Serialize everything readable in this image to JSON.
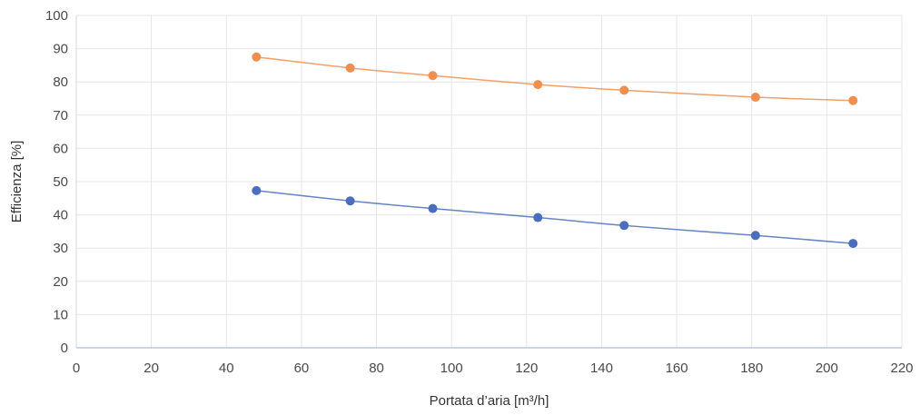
{
  "chart_data": {
    "type": "line",
    "xlabel": "Portata d’aria [m³/h]",
    "ylabel": "Efficienza [%]",
    "xlim": [
      0,
      220
    ],
    "ylim": [
      0,
      100
    ],
    "x_ticks": [
      "0",
      "20",
      "40",
      "60",
      "80",
      "100",
      "120",
      "140",
      "160",
      "180",
      "200",
      "220"
    ],
    "y_ticks": [
      "0",
      "10",
      "20",
      "30",
      "40",
      "50",
      "60",
      "70",
      "80",
      "90",
      "100"
    ],
    "grid": true,
    "legend": "none",
    "series": [
      {
        "color": "#ee8f50",
        "x": [
          48,
          73,
          95,
          123,
          146,
          181,
          207
        ],
        "y": [
          87.5,
          84.2,
          81.9,
          79.2,
          77.5,
          75.4,
          74.4
        ]
      },
      {
        "color": "#4a6dbd",
        "x": [
          48,
          73,
          95,
          123,
          146,
          181,
          207
        ],
        "y": [
          47.3,
          44.2,
          41.9,
          39.2,
          36.8,
          33.8,
          31.4
        ]
      }
    ]
  }
}
